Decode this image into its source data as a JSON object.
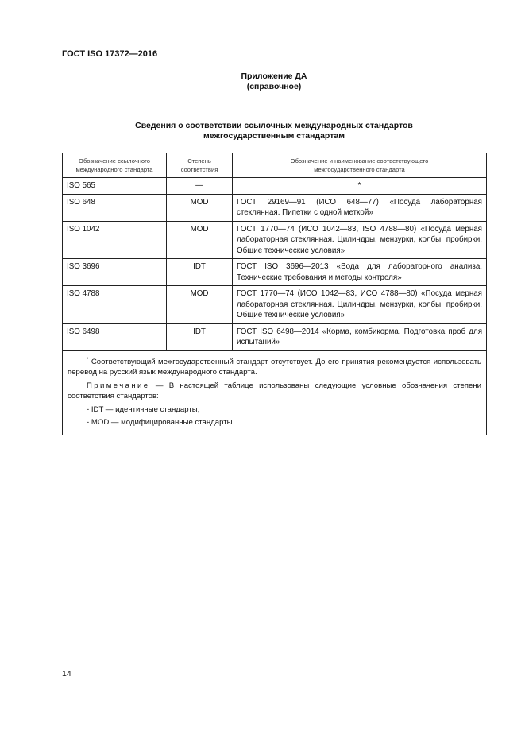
{
  "header": {
    "doc_code": "ГОСТ ISO 17372—2016"
  },
  "appendix": {
    "title": "Приложение ДА",
    "subtitle": "(справочное)"
  },
  "heading": {
    "line1": "Сведения о соответствии ссылочных международных стандартов",
    "line2": "межгосударственным стандартам"
  },
  "table": {
    "columns": [
      "Обозначение ссылочного международного стандарта",
      "Степень соответствия",
      "Обозначение и наименование соответствующего межгосударственного стандарта"
    ],
    "rows": [
      {
        "ref": "ISO 565",
        "degree": "—",
        "national": "*"
      },
      {
        "ref": "ISO 648",
        "degree": "MOD",
        "national": "ГОСТ 29169—91 (ИСО 648—77) «Посуда лабораторная стеклянная. Пипетки с одной меткой»"
      },
      {
        "ref": "ISO 1042",
        "degree": "MOD",
        "national": "ГОСТ 1770—74 (ИСО 1042—83, ISO 4788—80) «Посуда мерная лабораторная стеклянная. Цилиндры, мензурки, колбы, пробирки. Общие технические условия»"
      },
      {
        "ref": "ISO 3696",
        "degree": "IDT",
        "national": "ГОСТ ISO 3696—2013 «Вода для лабораторного анализа. Технические требования и методы контроля»"
      },
      {
        "ref": "ISO 4788",
        "degree": "MOD",
        "national": "ГОСТ 1770—74 (ИСО 1042—83, ИСО 4788—80) «Посуда мерная лабораторная стеклянная. Цилиндры, мензурки, колбы, пробирки. Общие технические условия»"
      },
      {
        "ref": "ISO 6498",
        "degree": "IDT",
        "national": "ГОСТ ISO 6498—2014 «Корма, комбикорма. Подготовка проб для испытаний»"
      }
    ],
    "footnote_mark": "*",
    "footnote": "Соответствующий межгосударственный стандарт отсутствует. До его принятия рекомендуется использовать перевод на русский язык международного стандарта.",
    "note_label": "Примечание",
    "note_text": " — В настоящей таблице использованы следующие условные обозначения степени соответствия стандартов:",
    "legend": [
      "- IDT — идентичные стандарты;",
      "- MOD — модифицированные стандарты."
    ]
  },
  "page_number": "14"
}
